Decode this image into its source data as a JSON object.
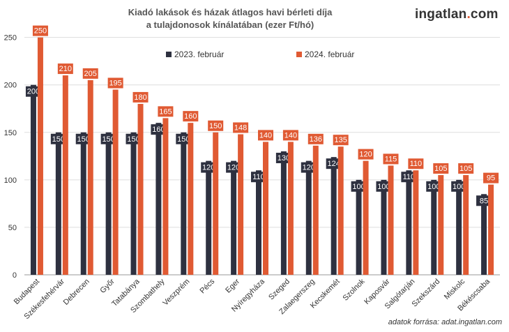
{
  "header": {
    "title_line1": "Kiadó lakások és házak átlagos havi bérleti díja",
    "title_line2": "a tulajdonosok kínálatában (ezer Ft/hó)",
    "brand_main": "ingatlan",
    "brand_dot": ".",
    "brand_tld": "com"
  },
  "footer": {
    "source": "adatok forrása: adat.ingatlan.com"
  },
  "colors": {
    "series_2023": "#2e3140",
    "series_2024": "#e05a33",
    "grid": "#dddddd",
    "text": "#333333"
  },
  "chart_data": {
    "type": "bar",
    "title": "Kiadó lakások és házak átlagos havi bérleti díja a tulajdonosok kínálatában (ezer Ft/hó)",
    "categories": [
      "Budapest",
      "Székesfehérvár",
      "Debrecen",
      "Győr",
      "Tatabánya",
      "Szombathely",
      "Veszprém",
      "Pécs",
      "Eger",
      "Nyíregyháza",
      "Szeged",
      "Zalaegerszeg",
      "Kecskemét",
      "Szolnok",
      "Kaposvár",
      "Salgótarján",
      "Szekszárd",
      "Miskolc",
      "Békéscsaba"
    ],
    "series": [
      {
        "name": "2023. február",
        "values": [
          200,
          150,
          150,
          150,
          150,
          160,
          150,
          120,
          120,
          110,
          130,
          120,
          124,
          100,
          100,
          110,
          100,
          100,
          85
        ]
      },
      {
        "name": "2024. február",
        "values": [
          250,
          210,
          205,
          195,
          180,
          165,
          160,
          150,
          148,
          140,
          140,
          136,
          135,
          120,
          115,
          110,
          105,
          105,
          95
        ]
      }
    ],
    "ylim": [
      0,
      260
    ],
    "yticks": [
      0,
      50,
      100,
      150,
      200,
      250
    ],
    "xlabel": "",
    "ylabel": "",
    "grid": true,
    "legend_position": "top"
  }
}
